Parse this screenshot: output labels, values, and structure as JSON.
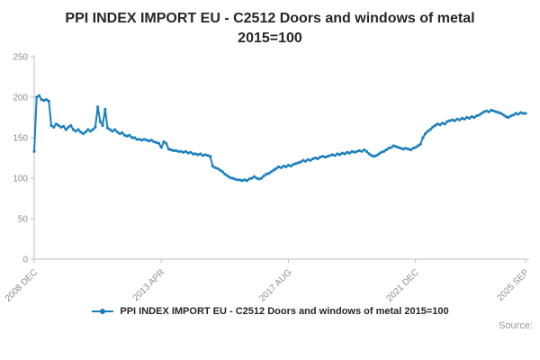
{
  "title": "PPI INDEX IMPORT EU - C2512 Doors and windows of metal 2015=100",
  "legend": {
    "label": "PPI INDEX IMPORT EU - C2512 Doors and windows of metal 2015=100"
  },
  "source": {
    "label": "Source:"
  },
  "colors": {
    "line": "#1b7fbd",
    "axis": "#bdbdbd",
    "tick_text": "#8c8c8c",
    "title_text": "#262626"
  },
  "chart_data": {
    "type": "line",
    "title": "PPI INDEX IMPORT EU - C2512 Doors and windows of metal 2015=100",
    "xlabel": "",
    "ylabel": "",
    "ylim": [
      0,
      250
    ],
    "y_ticks": [
      0,
      50,
      100,
      150,
      200,
      250
    ],
    "x_tick_labels": [
      "2008 DEC",
      "2013 APR",
      "2017 AUG",
      "2021 DEC",
      "2025 SEP"
    ],
    "x_tick_indices": [
      0,
      52,
      104,
      156,
      201
    ],
    "grid": false,
    "legend_position": "bottom",
    "series": [
      {
        "name": "PPI INDEX IMPORT EU - C2512 Doors and windows of metal 2015=100",
        "start_period": "2008 DEC",
        "end_period": "2025 SEP",
        "frequency": "monthly",
        "values": [
          133,
          200,
          202,
          197,
          196,
          197,
          195,
          165,
          163,
          167,
          165,
          163,
          164,
          160,
          163,
          165,
          160,
          158,
          160,
          157,
          155,
          157,
          160,
          158,
          160,
          163,
          188,
          170,
          165,
          185,
          162,
          160,
          158,
          160,
          157,
          155,
          156,
          153,
          152,
          153,
          150,
          150,
          148,
          148,
          147,
          148,
          147,
          146,
          147,
          145,
          144,
          143,
          138,
          145,
          143,
          136,
          135,
          134,
          134,
          133,
          133,
          132,
          133,
          131,
          132,
          130,
          130,
          129,
          130,
          128,
          129,
          128,
          127,
          115,
          113,
          112,
          110,
          108,
          105,
          103,
          101,
          100,
          99,
          98,
          98,
          97,
          98,
          97,
          99,
          100,
          102,
          100,
          99,
          100,
          103,
          105,
          106,
          108,
          110,
          112,
          114,
          113,
          115,
          114,
          116,
          115,
          117,
          118,
          119,
          120,
          122,
          121,
          123,
          122,
          124,
          125,
          124,
          126,
          127,
          126,
          127,
          128,
          129,
          128,
          130,
          129,
          131,
          130,
          132,
          131,
          133,
          132,
          133,
          134,
          133,
          135,
          133,
          130,
          128,
          127,
          128,
          130,
          132,
          133,
          135,
          137,
          138,
          140,
          139,
          138,
          137,
          136,
          137,
          136,
          135,
          137,
          138,
          140,
          142,
          150,
          155,
          158,
          160,
          163,
          165,
          167,
          166,
          168,
          167,
          170,
          171,
          172,
          171,
          173,
          172,
          174,
          173,
          175,
          174,
          176,
          175,
          177,
          178,
          180,
          182,
          183,
          182,
          184,
          183,
          182,
          181,
          180,
          178,
          176,
          175,
          177,
          178,
          180,
          179,
          181,
          180,
          180
        ]
      }
    ]
  }
}
